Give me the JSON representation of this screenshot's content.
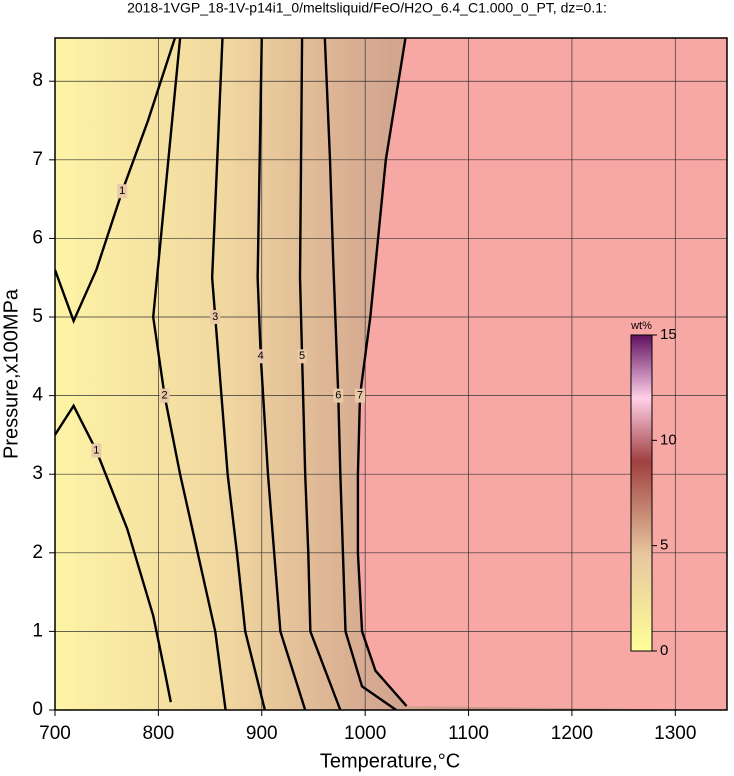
{
  "chart_data": {
    "type": "contour",
    "title": "2018-1VGP_18-1V-p14i1_0/meltsliquid/FeO/H2O_6.4_C1.000_0_PT, dz=0.1:",
    "x_label": "Temperature,°C",
    "y_label": "Pressure,x100MPa",
    "xlim": [
      700,
      1350
    ],
    "ylim": [
      0,
      8.55
    ],
    "xticks": [
      700,
      800,
      900,
      1000,
      1100,
      1200,
      1300
    ],
    "yticks": [
      0,
      1,
      2,
      3,
      4,
      5,
      6,
      7,
      8
    ],
    "grid": true,
    "low_color": "#fdf3a6",
    "high_color": "#f8a8a4",
    "contours": [
      {
        "level": 1,
        "x": [
          700,
          718,
          740,
          770,
          795,
          806,
          812
        ],
        "y": [
          3.5,
          3.87,
          3.3,
          2.3,
          1.2,
          0.5,
          0.1
        ]
      },
      {
        "level": 1,
        "x": [
          700,
          718,
          740,
          765,
          790,
          816
        ],
        "y": [
          5.6,
          4.95,
          5.6,
          6.6,
          7.5,
          8.55
        ]
      },
      {
        "level": 2,
        "x": [
          821,
          795,
          806,
          821,
          838,
          855,
          865
        ],
        "y": [
          8.55,
          5.0,
          4.0,
          3.0,
          2.0,
          1.0,
          0.0
        ]
      },
      {
        "level": 3,
        "x": [
          862,
          852,
          855,
          867,
          876,
          884,
          903
        ],
        "y": [
          8.55,
          5.5,
          5.0,
          3.0,
          2.0,
          1.0,
          0.0
        ]
      },
      {
        "level": 4,
        "x": [
          900,
          896,
          899,
          906,
          912,
          918,
          942
        ],
        "y": [
          8.55,
          5.5,
          4.5,
          3.0,
          2.0,
          1.0,
          0.0
        ]
      },
      {
        "level": 5,
        "x": [
          939,
          937,
          939,
          942,
          945,
          947,
          976
        ],
        "y": [
          8.55,
          5.5,
          4.5,
          3.0,
          2.0,
          1.0,
          0.0
        ]
      },
      {
        "level": 6,
        "x": [
          961,
          966,
          969,
          974,
          976,
          981,
          997,
          1030
        ],
        "y": [
          8.55,
          7.0,
          5.76,
          4.0,
          3.0,
          1.0,
          0.3,
          0.0
        ]
      },
      {
        "level": 7,
        "x": [
          1039,
          1020,
          1005,
          995,
          993,
          993,
          997,
          1010,
          1040
        ],
        "y": [
          8.55,
          7.0,
          5.0,
          4.0,
          3.0,
          2.0,
          1.0,
          0.5,
          0.05
        ]
      }
    ],
    "colorbar": {
      "label": "wt%",
      "lim": [
        0,
        15
      ],
      "ticks": [
        0,
        5,
        10,
        15
      ]
    }
  }
}
